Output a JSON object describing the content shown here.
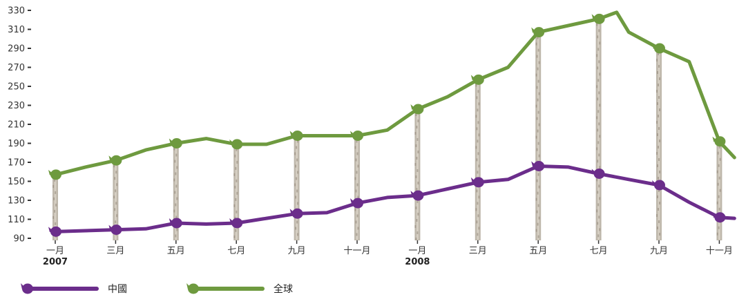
{
  "chart_data": {
    "type": "line",
    "title": "",
    "xlabel": "",
    "ylabel": "",
    "ylim": [
      90,
      330
    ],
    "yticks": [
      90,
      110,
      130,
      150,
      170,
      190,
      210,
      230,
      250,
      270,
      290,
      310,
      330
    ],
    "grid": false,
    "legend_position": "bottom-left",
    "x_labels": [
      "一月",
      "三月",
      "五月",
      "七月",
      "九月",
      "十一月",
      "一月",
      "三月",
      "五月",
      "七月",
      "九月",
      "十一月"
    ],
    "x_label_months": [
      1,
      3,
      5,
      7,
      9,
      11,
      13,
      15,
      17,
      19,
      21,
      23
    ],
    "year_labels": [
      {
        "text": "2007",
        "month": 1
      },
      {
        "text": "2008",
        "month": 13
      }
    ],
    "marker_months": [
      1,
      3,
      5,
      7,
      9,
      11,
      13,
      15,
      17,
      19,
      21,
      23
    ],
    "series": [
      {
        "name": "中國",
        "color": "#6b2d8b",
        "x": [
          1,
          2,
          3,
          4,
          5,
          6,
          7,
          8,
          9,
          10,
          11,
          12,
          13,
          14,
          15,
          16,
          17,
          18,
          19,
          20,
          21,
          22,
          23,
          23.5
        ],
        "y": [
          97,
          98,
          99,
          100,
          106,
          105,
          106,
          111,
          116,
          117,
          127,
          133,
          135,
          142,
          149,
          152,
          166,
          165,
          158,
          152,
          146,
          128,
          112,
          111
        ]
      },
      {
        "name": "全球",
        "color": "#6e9a3f",
        "x": [
          1,
          2,
          3,
          4,
          5,
          6,
          7,
          8,
          9,
          10,
          11,
          12,
          13,
          14,
          15,
          16,
          17,
          18,
          19,
          19.6,
          20,
          21,
          22,
          23,
          23.5
        ],
        "y": [
          157,
          165,
          172,
          183,
          190,
          195,
          189,
          189,
          198,
          198,
          198,
          204,
          226,
          239,
          257,
          270,
          307,
          314,
          321,
          328,
          307,
          290,
          276,
          192,
          175
        ]
      }
    ]
  }
}
